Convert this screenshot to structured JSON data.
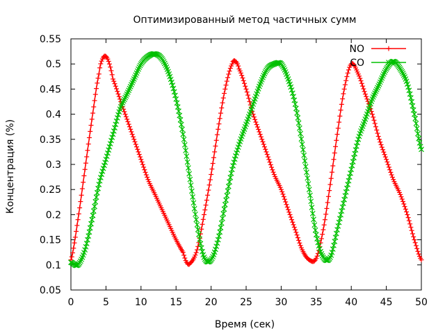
{
  "chart_data": {
    "type": "line",
    "title": "Оптимизированный метод частичных сумм",
    "xlabel": "Время (сек)",
    "ylabel": "Концентрация (%)",
    "xlim": [
      0,
      50
    ],
    "ylim": [
      0.05,
      0.55
    ],
    "x_ticks": [
      "0",
      "5",
      "10",
      "15",
      "20",
      "25",
      "30",
      "35",
      "40",
      "45",
      "50"
    ],
    "y_ticks": [
      "0.05",
      "0.1",
      "0.15",
      "0.2",
      "0.25",
      "0.3",
      "0.35",
      "0.4",
      "0.45",
      "0.5",
      "0.55"
    ],
    "grid": false,
    "legend_position": "top-right",
    "series": [
      {
        "name": "NO",
        "color": "#ff0000",
        "marker": "plus",
        "points": [
          [
            0,
            0.11
          ],
          [
            1,
            0.19
          ],
          [
            2,
            0.29
          ],
          [
            3,
            0.39
          ],
          [
            4,
            0.48
          ],
          [
            4.5,
            0.51
          ],
          [
            5,
            0.515
          ],
          [
            5.5,
            0.5
          ],
          [
            6,
            0.47
          ],
          [
            7,
            0.43
          ],
          [
            8,
            0.39
          ],
          [
            9,
            0.35
          ],
          [
            10,
            0.31
          ],
          [
            11,
            0.27
          ],
          [
            12,
            0.24
          ],
          [
            13,
            0.21
          ],
          [
            14,
            0.18
          ],
          [
            15,
            0.15
          ],
          [
            16,
            0.125
          ],
          [
            16.5,
            0.105
          ],
          [
            17,
            0.103
          ],
          [
            18,
            0.13
          ],
          [
            19,
            0.2
          ],
          [
            20,
            0.28
          ],
          [
            21,
            0.37
          ],
          [
            22,
            0.45
          ],
          [
            23,
            0.5
          ],
          [
            23.5,
            0.505
          ],
          [
            24,
            0.49
          ],
          [
            25,
            0.45
          ],
          [
            26,
            0.4
          ],
          [
            27,
            0.36
          ],
          [
            28,
            0.32
          ],
          [
            29,
            0.28
          ],
          [
            30,
            0.25
          ],
          [
            31,
            0.21
          ],
          [
            32,
            0.17
          ],
          [
            33,
            0.13
          ],
          [
            34,
            0.11
          ],
          [
            35,
            0.113
          ],
          [
            36,
            0.17
          ],
          [
            37,
            0.26
          ],
          [
            38,
            0.36
          ],
          [
            39,
            0.45
          ],
          [
            40,
            0.5
          ],
          [
            41,
            0.48
          ],
          [
            42,
            0.44
          ],
          [
            43,
            0.4
          ],
          [
            44,
            0.35
          ],
          [
            45,
            0.31
          ],
          [
            46,
            0.27
          ],
          [
            47,
            0.24
          ],
          [
            48,
            0.2
          ],
          [
            49,
            0.15
          ],
          [
            50,
            0.11
          ]
        ]
      },
      {
        "name": "CO",
        "color": "#00c000",
        "marker": "cross",
        "points": [
          [
            0,
            0.105
          ],
          [
            1,
            0.1
          ],
          [
            2,
            0.13
          ],
          [
            3,
            0.19
          ],
          [
            4,
            0.26
          ],
          [
            5,
            0.31
          ],
          [
            6,
            0.36
          ],
          [
            7,
            0.41
          ],
          [
            8,
            0.44
          ],
          [
            9,
            0.47
          ],
          [
            10,
            0.5
          ],
          [
            11,
            0.515
          ],
          [
            12,
            0.52
          ],
          [
            13,
            0.51
          ],
          [
            14,
            0.48
          ],
          [
            15,
            0.43
          ],
          [
            16,
            0.36
          ],
          [
            17,
            0.27
          ],
          [
            18,
            0.18
          ],
          [
            19,
            0.115
          ],
          [
            20,
            0.11
          ],
          [
            21,
            0.15
          ],
          [
            22,
            0.22
          ],
          [
            23,
            0.29
          ],
          [
            24,
            0.34
          ],
          [
            25,
            0.38
          ],
          [
            26,
            0.42
          ],
          [
            27,
            0.46
          ],
          [
            28,
            0.49
          ],
          [
            29,
            0.5
          ],
          [
            30,
            0.5
          ],
          [
            31,
            0.47
          ],
          [
            32,
            0.42
          ],
          [
            33,
            0.34
          ],
          [
            34,
            0.25
          ],
          [
            35,
            0.16
          ],
          [
            36,
            0.115
          ],
          [
            37,
            0.115
          ],
          [
            38,
            0.17
          ],
          [
            39,
            0.23
          ],
          [
            40,
            0.29
          ],
          [
            41,
            0.35
          ],
          [
            42,
            0.39
          ],
          [
            43,
            0.43
          ],
          [
            44,
            0.46
          ],
          [
            45,
            0.49
          ],
          [
            46,
            0.505
          ],
          [
            47,
            0.49
          ],
          [
            48,
            0.46
          ],
          [
            49,
            0.4
          ],
          [
            50,
            0.33
          ]
        ]
      }
    ]
  }
}
